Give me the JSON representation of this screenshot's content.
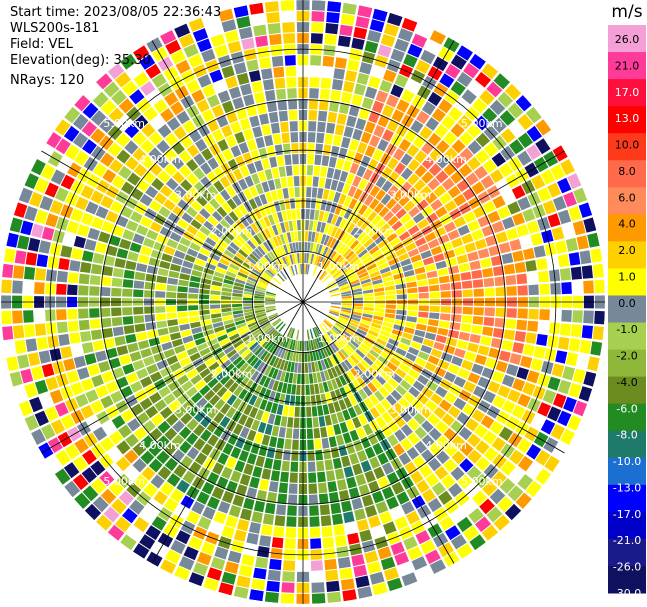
{
  "info": {
    "start_time": "Start time: 2023/08/05 22:36:43",
    "instrument": "WLS200s-181",
    "field": "Field: VEL",
    "elevation": "Elevation(deg): 35.30",
    "nrays": "NRays: 120"
  },
  "chart_data": {
    "type": "heatmap",
    "projection": "polar-ppi",
    "field": "VEL",
    "units": "m/s",
    "nrays": 120,
    "range_rings_km": [
      1.0,
      2.0,
      3.0,
      4.0,
      5.0
    ],
    "ring_labels": [
      "1.00km",
      "2.00km",
      "3.00km",
      "4.00km",
      "5.00km"
    ],
    "max_range_km": 5.0,
    "spoke_angles_deg": [
      0,
      30,
      60,
      90,
      120,
      150,
      180,
      210,
      240,
      270,
      300,
      330
    ],
    "colorbar": {
      "label": "m/s",
      "ticks": [
        "26.0",
        "21.0",
        "17.0",
        "13.0",
        "10.0",
        "8.0",
        "6.0",
        "4.0",
        "2.0",
        "1.0",
        "0.0",
        "-1.0",
        "-2.0",
        "-4.0",
        "-6.0",
        "-8.0",
        "-10.0",
        "-13.0",
        "-17.0",
        "-21.0",
        "-26.0",
        "-30.0"
      ],
      "colors": [
        "#f4a0d6",
        "#ff3b9a",
        "#ff0f3c",
        "#ff0000",
        "#ff3a1a",
        "#ff6a4a",
        "#ff8a5a",
        "#ff9900",
        "#ffd000",
        "#ffff00",
        "#778899",
        "#a8d050",
        "#8fb83a",
        "#6c8c1f",
        "#228b22",
        "#1e7a6a",
        "#1a6fd0",
        "#0000ff",
        "#0000c8",
        "#1a1a8a",
        "#101060"
      ]
    },
    "sectors": [
      {
        "name": "north",
        "dominant": "yellow-gray mixed",
        "velocity_range": [
          -1,
          2
        ]
      },
      {
        "name": "northeast",
        "dominant": "yellow-orange",
        "velocity_range": [
          2,
          8
        ]
      },
      {
        "name": "east",
        "dominant": "yellow-orange",
        "velocity_range": [
          1,
          6
        ]
      },
      {
        "name": "southeast",
        "dominant": "yellow-gray",
        "velocity_range": [
          -1,
          4
        ]
      },
      {
        "name": "south",
        "dominant": "green",
        "velocity_range": [
          -8,
          -2
        ]
      },
      {
        "name": "southwest",
        "dominant": "olive-green",
        "velocity_range": [
          -6,
          -1
        ]
      },
      {
        "name": "west",
        "dominant": "green-yellow",
        "velocity_range": [
          -4,
          2
        ]
      },
      {
        "name": "northwest",
        "dominant": "yellow-gray",
        "velocity_range": [
          -2,
          2
        ]
      }
    ]
  }
}
